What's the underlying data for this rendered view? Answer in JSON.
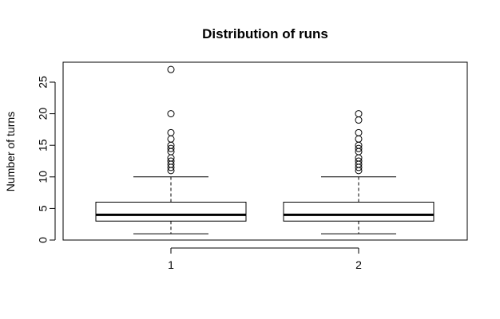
{
  "chart_data": {
    "type": "box",
    "title": "Distribution of runs",
    "xlabel": "",
    "ylabel": "Number of turns",
    "ylim": [
      0,
      28
    ],
    "yticks": [
      0,
      5,
      10,
      15,
      20,
      25
    ],
    "categories": [
      "1",
      "2"
    ],
    "series": [
      {
        "category": "1",
        "whisker_low": 1,
        "q1": 3,
        "median": 4,
        "q3": 6,
        "whisker_high": 10,
        "outliers": [
          11,
          11.5,
          12,
          12.5,
          13,
          14,
          14.5,
          15,
          16,
          17,
          20,
          27
        ]
      },
      {
        "category": "2",
        "whisker_low": 1,
        "q1": 3,
        "median": 4,
        "q3": 6,
        "whisker_high": 10,
        "outliers": [
          11,
          11.5,
          12,
          12.5,
          13,
          14,
          14.5,
          15,
          16,
          17,
          19,
          20
        ]
      }
    ],
    "grid": false,
    "legend": "none"
  }
}
